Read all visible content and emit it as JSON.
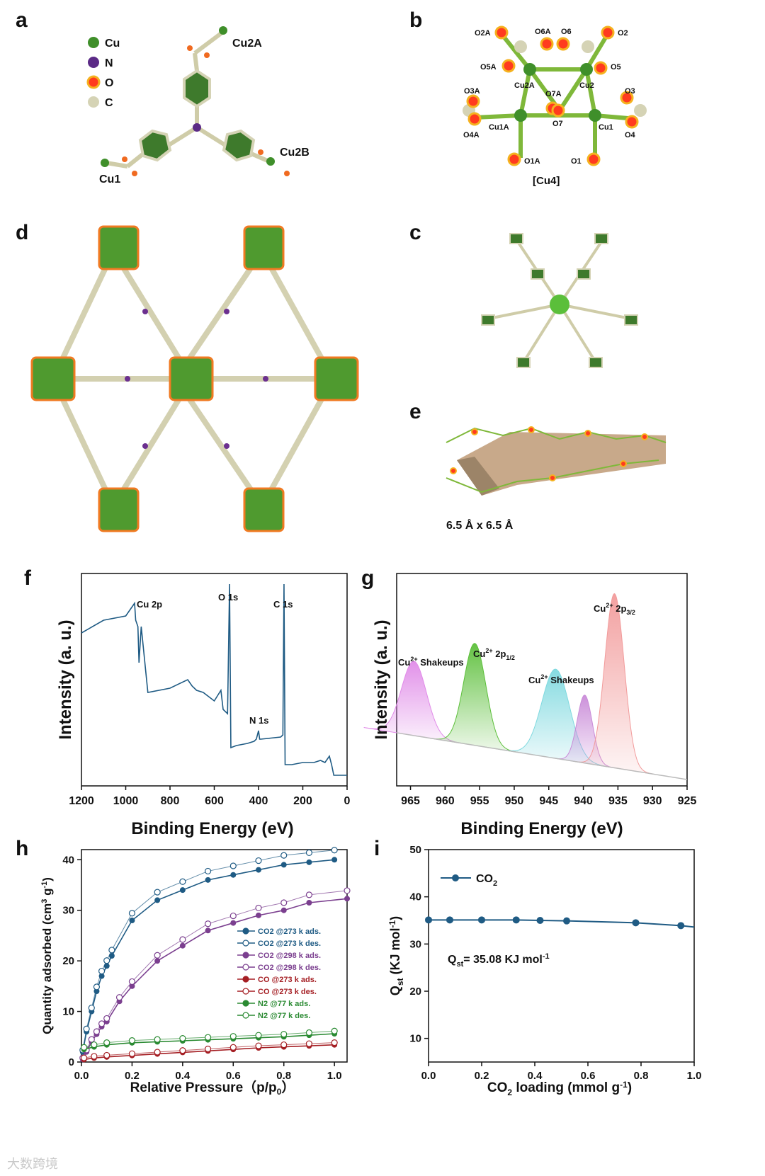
{
  "figure": {
    "panel_labels": {
      "a": "a",
      "b": "b",
      "c": "c",
      "d": "d",
      "e": "e",
      "f": "f",
      "g": "g",
      "h": "h",
      "i": "i"
    },
    "panel_a": {
      "legend": [
        "Cu",
        "N",
        "O",
        "C"
      ],
      "atom_labels": {
        "cu1": "Cu1",
        "cu2a": "Cu2A",
        "cu2b": "Cu2B"
      },
      "colors": {
        "Cu": "#3f8f2a",
        "N": "#5b2a86",
        "O": "#f0a020",
        "C": "#d5d3b5",
        "ring": "#3e7a2c"
      }
    },
    "panel_b": {
      "atom_labels": [
        "O2A",
        "O6A",
        "O6",
        "O2",
        "O5A",
        "O5",
        "Cu2A",
        "Cu2",
        "O3A",
        "O7A",
        "O3",
        "O7",
        "Cu1A",
        "Cu1",
        "O4A",
        "O4",
        "O1A",
        "O1"
      ],
      "caption": "[Cu4]"
    },
    "panel_e": {
      "pore_label": "6.5 Å x 6.5 Å"
    },
    "panel_f": {
      "xlabel": "Binding Energy (eV)",
      "ylabel": "Intensity (a. u.)",
      "peak_labels": [
        "Cu 2p",
        "O 1s",
        "C 1s",
        "N 1s"
      ],
      "color": "#1f5b84"
    },
    "panel_g": {
      "xlabel": "Binding Energy (eV)",
      "ylabel": "Intensity (a. u.)",
      "peak_labels": [
        "Cu2+ Shakeups",
        "Cu2+ 2p1/2",
        "Cu2+ Shakeups",
        "Cu2+ 2p3/2"
      ],
      "colors": [
        "#e08be8",
        "#5cbf3a",
        "#7fd9df",
        "#c98bd8",
        "#f29b9b"
      ]
    },
    "panel_h": {
      "xlabel": "Relative Pressure（p/p0）",
      "ylabel": "Quantity adsorbed (cm3 g-1)",
      "legend": [
        "CO2 @273 k ads.",
        "CO2 @273 k des.",
        "CO2 @298 k ads.",
        "CO2 @298 k des.",
        "CO  @273 k ads.",
        "CO  @273 k des.",
        "N2  @77 k ads.",
        "N2  @77 k des."
      ]
    },
    "panel_i": {
      "xlabel": "CO2 loading (mmol g-1)",
      "ylabel": "Qst (KJ mol-1)",
      "legend": "CO2",
      "annotation": "Qst= 35.08 KJ mol-1"
    },
    "watermark": "大数跨境"
  },
  "chart_data": [
    {
      "type": "line",
      "panel": "f",
      "xlabel": "Binding Energy (eV)",
      "ylabel": "Intensity (a. u.)",
      "xlim": [
        1200,
        0
      ],
      "xticks": [
        1200,
        1000,
        800,
        600,
        400,
        200,
        0
      ],
      "x": [
        1200,
        1100,
        1000,
        960,
        955,
        945,
        940,
        930,
        900,
        800,
        720,
        700,
        680,
        650,
        600,
        570,
        560,
        540,
        531,
        525,
        500,
        450,
        420,
        410,
        400,
        395,
        390,
        300,
        290,
        285,
        280,
        250,
        200,
        150,
        120,
        100,
        80,
        70,
        60,
        0
      ],
      "y": [
        0.72,
        0.78,
        0.8,
        0.86,
        0.78,
        0.75,
        0.58,
        0.75,
        0.44,
        0.46,
        0.5,
        0.47,
        0.45,
        0.44,
        0.4,
        0.45,
        0.36,
        0.34,
        0.95,
        0.18,
        0.19,
        0.2,
        0.21,
        0.22,
        0.26,
        0.22,
        0.22,
        0.23,
        0.24,
        0.95,
        0.1,
        0.1,
        0.11,
        0.11,
        0.12,
        0.11,
        0.14,
        0.1,
        0.05,
        0.05
      ]
    },
    {
      "type": "area",
      "panel": "g",
      "xlabel": "Binding Energy (eV)",
      "ylabel": "Intensity (a. u.)",
      "xlim": [
        967,
        925
      ],
      "xticks": [
        965,
        960,
        955,
        950,
        945,
        940,
        935,
        930,
        925
      ],
      "peaks": [
        {
          "name": "Cu2+ Shakeups",
          "center": 964.5,
          "width": 1.8,
          "height": 0.35
        },
        {
          "name": "Cu2+ 2p1/2",
          "center": 955.7,
          "width": 1.6,
          "height": 0.48
        },
        {
          "name": "Cu2+ Shakeups",
          "center": 944.0,
          "width": 2.0,
          "height": 0.42
        },
        {
          "name": "",
          "center": 939.8,
          "width": 1.1,
          "height": 0.32
        },
        {
          "name": "Cu2+ 2p3/2",
          "center": 935.5,
          "width": 1.4,
          "height": 0.82
        }
      ]
    },
    {
      "type": "line",
      "panel": "h",
      "xlabel": "Relative Pressure（p/p0）",
      "ylabel": "Quantity adsorbed (cm3 g-1)",
      "xlim": [
        0,
        1.05
      ],
      "ylim": [
        0,
        42
      ],
      "xticks": [
        0.0,
        0.2,
        0.4,
        0.6,
        0.8,
        1.0
      ],
      "yticks": [
        0,
        10,
        20,
        30,
        40
      ],
      "series": [
        {
          "name": "CO2 @273 k ads.",
          "color": "#1f5b84",
          "x": [
            0.005,
            0.02,
            0.04,
            0.06,
            0.08,
            0.1,
            0.12,
            0.2,
            0.3,
            0.4,
            0.5,
            0.6,
            0.7,
            0.8,
            0.9,
            1.0
          ],
          "y": [
            2,
            6,
            10,
            14,
            17,
            19,
            21,
            28,
            32,
            34,
            36,
            37,
            38,
            39,
            39.5,
            40
          ]
        },
        {
          "name": "CO2 @298 k ads.",
          "color": "#7b3f8f",
          "x": [
            0.005,
            0.02,
            0.04,
            0.06,
            0.08,
            0.1,
            0.15,
            0.2,
            0.3,
            0.4,
            0.5,
            0.6,
            0.7,
            0.8,
            0.9,
            1.05
          ],
          "y": [
            0.5,
            2,
            4,
            5.5,
            7,
            8,
            12,
            15,
            20,
            23,
            26,
            27.5,
            29,
            30,
            31.5,
            32.3
          ]
        },
        {
          "name": "CO @273 k ads.",
          "color": "#a51f24",
          "x": [
            0.01,
            0.05,
            0.1,
            0.2,
            0.3,
            0.4,
            0.5,
            0.6,
            0.7,
            0.8,
            0.9,
            1.0
          ],
          "y": [
            0.5,
            0.8,
            1.0,
            1.3,
            1.6,
            1.9,
            2.2,
            2.5,
            2.8,
            3.0,
            3.2,
            3.4
          ]
        },
        {
          "name": "N2 @77 k ads.",
          "color": "#2a8a32",
          "x": [
            0.01,
            0.05,
            0.1,
            0.2,
            0.3,
            0.4,
            0.5,
            0.6,
            0.7,
            0.8,
            0.9,
            1.0
          ],
          "y": [
            2.5,
            3.0,
            3.4,
            3.8,
            4.0,
            4.2,
            4.4,
            4.6,
            4.8,
            5.0,
            5.3,
            5.6
          ]
        }
      ]
    },
    {
      "type": "line",
      "panel": "i",
      "xlabel": "CO2 loading (mmol g-1)",
      "ylabel": "Qst (KJ mol-1)",
      "xlim": [
        0,
        1.0
      ],
      "ylim": [
        5,
        50
      ],
      "xticks": [
        0.0,
        0.2,
        0.4,
        0.6,
        0.8,
        1.0
      ],
      "yticks": [
        10,
        20,
        30,
        40,
        50
      ],
      "series": [
        {
          "name": "CO2",
          "color": "#1f5b84",
          "x": [
            0.0,
            0.08,
            0.2,
            0.33,
            0.42,
            0.52,
            0.78,
            0.95,
            1.0
          ],
          "y": [
            35.1,
            35.1,
            35.1,
            35.1,
            35.0,
            34.9,
            34.5,
            33.9,
            33.6
          ]
        }
      ]
    }
  ]
}
